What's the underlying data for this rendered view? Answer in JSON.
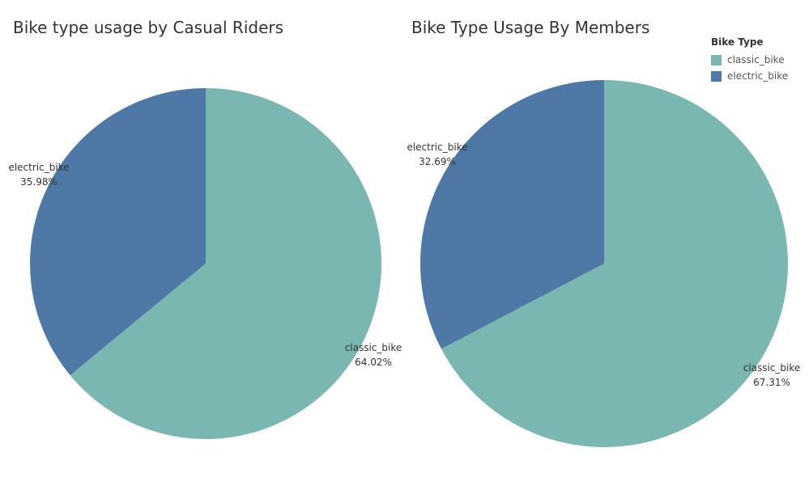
{
  "colors": {
    "classic_bike": "#79b7b0",
    "electric_bike": "#4e79a7"
  },
  "legend": {
    "title": "Bike Type",
    "items": [
      {
        "label": "classic_bike",
        "color": "#79b7b0"
      },
      {
        "label": "electric_bike",
        "color": "#4e79a7"
      }
    ]
  },
  "chart_data": [
    {
      "type": "pie",
      "title": "Bike type usage by Casual Riders",
      "slices": [
        {
          "label": "classic_bike",
          "value": 64.02,
          "value_label": "64.02%",
          "color": "#79b7b0"
        },
        {
          "label": "electric_bike",
          "value": 35.98,
          "value_label": "35.98%",
          "color": "#4e79a7"
        }
      ]
    },
    {
      "type": "pie",
      "title": "Bike Type Usage By Members",
      "slices": [
        {
          "label": "classic_bike",
          "value": 67.31,
          "value_label": "67.31%",
          "color": "#79b7b0"
        },
        {
          "label": "electric_bike",
          "value": 32.69,
          "value_label": "32.69%",
          "color": "#4e79a7"
        }
      ]
    }
  ]
}
